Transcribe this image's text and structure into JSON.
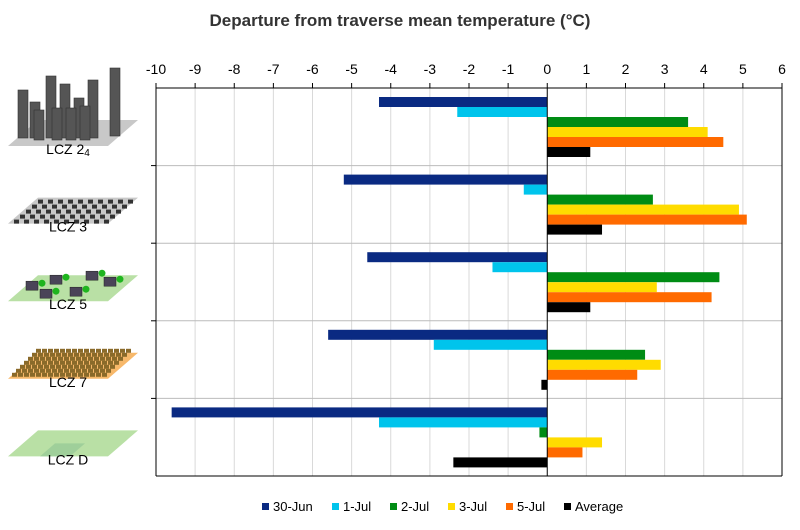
{
  "chart_data": {
    "type": "bar",
    "orientation": "horizontal",
    "title": "Departure from traverse mean temperature (°C)",
    "xlabel": "",
    "ylabel": "",
    "xlim": [
      -10,
      6
    ],
    "x_ticks": [
      "-10",
      "-9",
      "-8",
      "-7",
      "-6",
      "-5",
      "-4",
      "-3",
      "-2",
      "-1",
      "0",
      "1",
      "2",
      "3",
      "4",
      "5",
      "6"
    ],
    "x_axis_position": "top",
    "grid": true,
    "legend_position": "bottom",
    "categories": [
      {
        "main": "LCZ 2",
        "sub": "4"
      },
      {
        "main": "LCZ 3",
        "sub": ""
      },
      {
        "main": "LCZ 5",
        "sub": ""
      },
      {
        "main": "LCZ 7",
        "sub": ""
      },
      {
        "main": "LCZ D",
        "sub": ""
      }
    ],
    "series": [
      {
        "name": "30-Jun",
        "color": "#0a2a82",
        "values": [
          -4.3,
          -5.2,
          -4.6,
          -5.6,
          -9.6
        ]
      },
      {
        "name": "1-Jul",
        "color": "#00c4ec",
        "values": [
          -2.3,
          -0.6,
          -1.4,
          -2.9,
          -4.3
        ]
      },
      {
        "name": "2-Jul",
        "color": "#008c14",
        "values": [
          3.6,
          2.7,
          4.4,
          2.5,
          -0.2
        ]
      },
      {
        "name": "3-Jul",
        "color": "#ffdc00",
        "values": [
          4.1,
          4.9,
          2.8,
          2.9,
          1.4
        ]
      },
      {
        "name": "5-Jul",
        "color": "#ff6a00",
        "values": [
          4.5,
          5.1,
          4.2,
          2.3,
          0.9
        ]
      },
      {
        "name": "Average",
        "color": "#000000",
        "values": [
          1.1,
          1.4,
          1.1,
          -0.15,
          -2.4
        ]
      }
    ]
  }
}
